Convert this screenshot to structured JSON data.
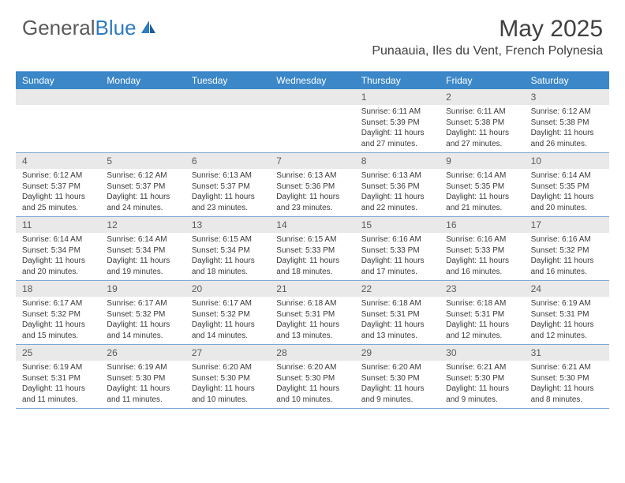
{
  "logo": {
    "text1": "General",
    "text2": "Blue"
  },
  "title": "May 2025",
  "location": "Punaauia, Iles du Vent, French Polynesia",
  "colors": {
    "header_bg": "#3b87c8",
    "daynum_bg": "#e9e9e9",
    "rule": "#7aa9d4",
    "text": "#3a3a3a",
    "title_text": "#404040"
  },
  "day_names": [
    "Sunday",
    "Monday",
    "Tuesday",
    "Wednesday",
    "Thursday",
    "Friday",
    "Saturday"
  ],
  "weeks": [
    [
      {
        "n": "",
        "sr": "",
        "ss": "",
        "dl": ""
      },
      {
        "n": "",
        "sr": "",
        "ss": "",
        "dl": ""
      },
      {
        "n": "",
        "sr": "",
        "ss": "",
        "dl": ""
      },
      {
        "n": "",
        "sr": "",
        "ss": "",
        "dl": ""
      },
      {
        "n": "1",
        "sr": "Sunrise: 6:11 AM",
        "ss": "Sunset: 5:39 PM",
        "dl": "Daylight: 11 hours and 27 minutes."
      },
      {
        "n": "2",
        "sr": "Sunrise: 6:11 AM",
        "ss": "Sunset: 5:38 PM",
        "dl": "Daylight: 11 hours and 27 minutes."
      },
      {
        "n": "3",
        "sr": "Sunrise: 6:12 AM",
        "ss": "Sunset: 5:38 PM",
        "dl": "Daylight: 11 hours and 26 minutes."
      }
    ],
    [
      {
        "n": "4",
        "sr": "Sunrise: 6:12 AM",
        "ss": "Sunset: 5:37 PM",
        "dl": "Daylight: 11 hours and 25 minutes."
      },
      {
        "n": "5",
        "sr": "Sunrise: 6:12 AM",
        "ss": "Sunset: 5:37 PM",
        "dl": "Daylight: 11 hours and 24 minutes."
      },
      {
        "n": "6",
        "sr": "Sunrise: 6:13 AM",
        "ss": "Sunset: 5:37 PM",
        "dl": "Daylight: 11 hours and 23 minutes."
      },
      {
        "n": "7",
        "sr": "Sunrise: 6:13 AM",
        "ss": "Sunset: 5:36 PM",
        "dl": "Daylight: 11 hours and 23 minutes."
      },
      {
        "n": "8",
        "sr": "Sunrise: 6:13 AM",
        "ss": "Sunset: 5:36 PM",
        "dl": "Daylight: 11 hours and 22 minutes."
      },
      {
        "n": "9",
        "sr": "Sunrise: 6:14 AM",
        "ss": "Sunset: 5:35 PM",
        "dl": "Daylight: 11 hours and 21 minutes."
      },
      {
        "n": "10",
        "sr": "Sunrise: 6:14 AM",
        "ss": "Sunset: 5:35 PM",
        "dl": "Daylight: 11 hours and 20 minutes."
      }
    ],
    [
      {
        "n": "11",
        "sr": "Sunrise: 6:14 AM",
        "ss": "Sunset: 5:34 PM",
        "dl": "Daylight: 11 hours and 20 minutes."
      },
      {
        "n": "12",
        "sr": "Sunrise: 6:14 AM",
        "ss": "Sunset: 5:34 PM",
        "dl": "Daylight: 11 hours and 19 minutes."
      },
      {
        "n": "13",
        "sr": "Sunrise: 6:15 AM",
        "ss": "Sunset: 5:34 PM",
        "dl": "Daylight: 11 hours and 18 minutes."
      },
      {
        "n": "14",
        "sr": "Sunrise: 6:15 AM",
        "ss": "Sunset: 5:33 PM",
        "dl": "Daylight: 11 hours and 18 minutes."
      },
      {
        "n": "15",
        "sr": "Sunrise: 6:16 AM",
        "ss": "Sunset: 5:33 PM",
        "dl": "Daylight: 11 hours and 17 minutes."
      },
      {
        "n": "16",
        "sr": "Sunrise: 6:16 AM",
        "ss": "Sunset: 5:33 PM",
        "dl": "Daylight: 11 hours and 16 minutes."
      },
      {
        "n": "17",
        "sr": "Sunrise: 6:16 AM",
        "ss": "Sunset: 5:32 PM",
        "dl": "Daylight: 11 hours and 16 minutes."
      }
    ],
    [
      {
        "n": "18",
        "sr": "Sunrise: 6:17 AM",
        "ss": "Sunset: 5:32 PM",
        "dl": "Daylight: 11 hours and 15 minutes."
      },
      {
        "n": "19",
        "sr": "Sunrise: 6:17 AM",
        "ss": "Sunset: 5:32 PM",
        "dl": "Daylight: 11 hours and 14 minutes."
      },
      {
        "n": "20",
        "sr": "Sunrise: 6:17 AM",
        "ss": "Sunset: 5:32 PM",
        "dl": "Daylight: 11 hours and 14 minutes."
      },
      {
        "n": "21",
        "sr": "Sunrise: 6:18 AM",
        "ss": "Sunset: 5:31 PM",
        "dl": "Daylight: 11 hours and 13 minutes."
      },
      {
        "n": "22",
        "sr": "Sunrise: 6:18 AM",
        "ss": "Sunset: 5:31 PM",
        "dl": "Daylight: 11 hours and 13 minutes."
      },
      {
        "n": "23",
        "sr": "Sunrise: 6:18 AM",
        "ss": "Sunset: 5:31 PM",
        "dl": "Daylight: 11 hours and 12 minutes."
      },
      {
        "n": "24",
        "sr": "Sunrise: 6:19 AM",
        "ss": "Sunset: 5:31 PM",
        "dl": "Daylight: 11 hours and 12 minutes."
      }
    ],
    [
      {
        "n": "25",
        "sr": "Sunrise: 6:19 AM",
        "ss": "Sunset: 5:31 PM",
        "dl": "Daylight: 11 hours and 11 minutes."
      },
      {
        "n": "26",
        "sr": "Sunrise: 6:19 AM",
        "ss": "Sunset: 5:30 PM",
        "dl": "Daylight: 11 hours and 11 minutes."
      },
      {
        "n": "27",
        "sr": "Sunrise: 6:20 AM",
        "ss": "Sunset: 5:30 PM",
        "dl": "Daylight: 11 hours and 10 minutes."
      },
      {
        "n": "28",
        "sr": "Sunrise: 6:20 AM",
        "ss": "Sunset: 5:30 PM",
        "dl": "Daylight: 11 hours and 10 minutes."
      },
      {
        "n": "29",
        "sr": "Sunrise: 6:20 AM",
        "ss": "Sunset: 5:30 PM",
        "dl": "Daylight: 11 hours and 9 minutes."
      },
      {
        "n": "30",
        "sr": "Sunrise: 6:21 AM",
        "ss": "Sunset: 5:30 PM",
        "dl": "Daylight: 11 hours and 9 minutes."
      },
      {
        "n": "31",
        "sr": "Sunrise: 6:21 AM",
        "ss": "Sunset: 5:30 PM",
        "dl": "Daylight: 11 hours and 8 minutes."
      }
    ]
  ]
}
